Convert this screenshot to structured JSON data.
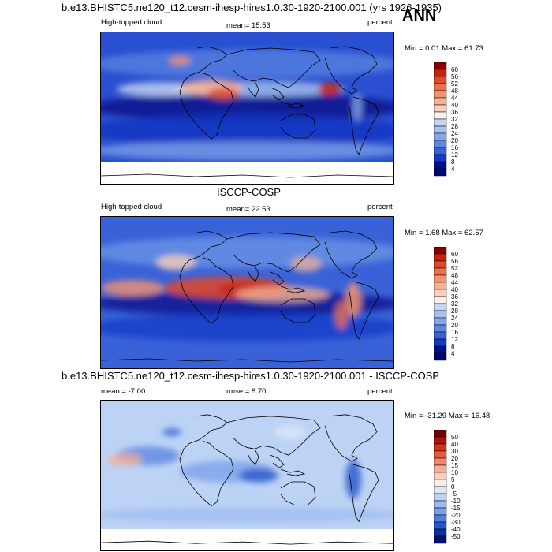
{
  "page": {
    "title": "b.e13.BHISTC5.ne120_t12.cesm-ihesp-hires1.0.30-1920-2100.001 (yrs 1926-1935)",
    "season": "ANN"
  },
  "chart_data": [
    {
      "type": "heatmap",
      "title": "b.e13.BHISTC5.ne120_t12.cesm-ihesp-hires1.0.30-1920-2100.001 (yrs 1926-1935)",
      "left_label": "High-topped cloud",
      "center_label": "mean=  15.53",
      "right_label": "percent",
      "minmax_label": "Min =   0.01 Max =  61.73",
      "stats": {
        "mean": 15.53,
        "min": 0.01,
        "max": 61.73
      },
      "colorbar": {
        "levels": [
          "60",
          "56",
          "52",
          "48",
          "44",
          "40",
          "36",
          "32",
          "28",
          "24",
          "20",
          "16",
          "12",
          "8",
          "4"
        ],
        "colors": [
          "#8b0000",
          "#c8200c",
          "#e2492a",
          "#ee6f4d",
          "#f4926e",
          "#f7b294",
          "#f9d0bb",
          "#fbf0ec",
          "#c5d7f2",
          "#a5c2ef",
          "#84a8ea",
          "#5d88e2",
          "#3762d8",
          "#1138c7",
          "#00108a",
          "#000870"
        ]
      }
    },
    {
      "type": "heatmap",
      "title": "ISCCP-COSP",
      "left_label": "High-topped cloud",
      "center_label": "mean=  22.53",
      "right_label": "percent",
      "minmax_label": "Min =   1.68 Max =  62.57",
      "stats": {
        "mean": 22.53,
        "min": 1.68,
        "max": 62.57
      },
      "colorbar": {
        "levels": [
          "60",
          "56",
          "52",
          "48",
          "44",
          "40",
          "36",
          "32",
          "28",
          "24",
          "20",
          "16",
          "12",
          "8",
          "4"
        ],
        "colors": [
          "#8b0000",
          "#c8200c",
          "#e2492a",
          "#ee6f4d",
          "#f4926e",
          "#f7b294",
          "#f9d0bb",
          "#fbf0ec",
          "#c5d7f2",
          "#a5c2ef",
          "#84a8ea",
          "#5d88e2",
          "#3762d8",
          "#1138c7",
          "#00108a",
          "#000870"
        ]
      }
    },
    {
      "type": "heatmap",
      "title": "b.e13.BHISTC5.ne120_t12.cesm-ihesp-hires1.0.30-1920-2100.001 - ISCCP-COSP",
      "left_label": "mean =  -7.00",
      "center_label": "rmse =   8.70",
      "right_label": "percent",
      "minmax_label": "Min = -31.29 Max =  16.48",
      "stats": {
        "mean": -7.0,
        "rmse": 8.7,
        "min": -31.29,
        "max": 16.48
      },
      "colorbar": {
        "levels": [
          "50",
          "40",
          "30",
          "20",
          "15",
          "10",
          "5",
          "0",
          "-5",
          "-10",
          "-15",
          "-20",
          "-30",
          "-40",
          "-50"
        ],
        "colors": [
          "#7a0000",
          "#b3100a",
          "#d6301c",
          "#e85a3a",
          "#f2876a",
          "#f6ad95",
          "#f9cfc0",
          "#fbeee8",
          "#dce8fa",
          "#bdd3f5",
          "#9bbbf0",
          "#789fe8",
          "#4f7edd",
          "#2456cc",
          "#0a2ea6",
          "#001070"
        ]
      }
    }
  ]
}
